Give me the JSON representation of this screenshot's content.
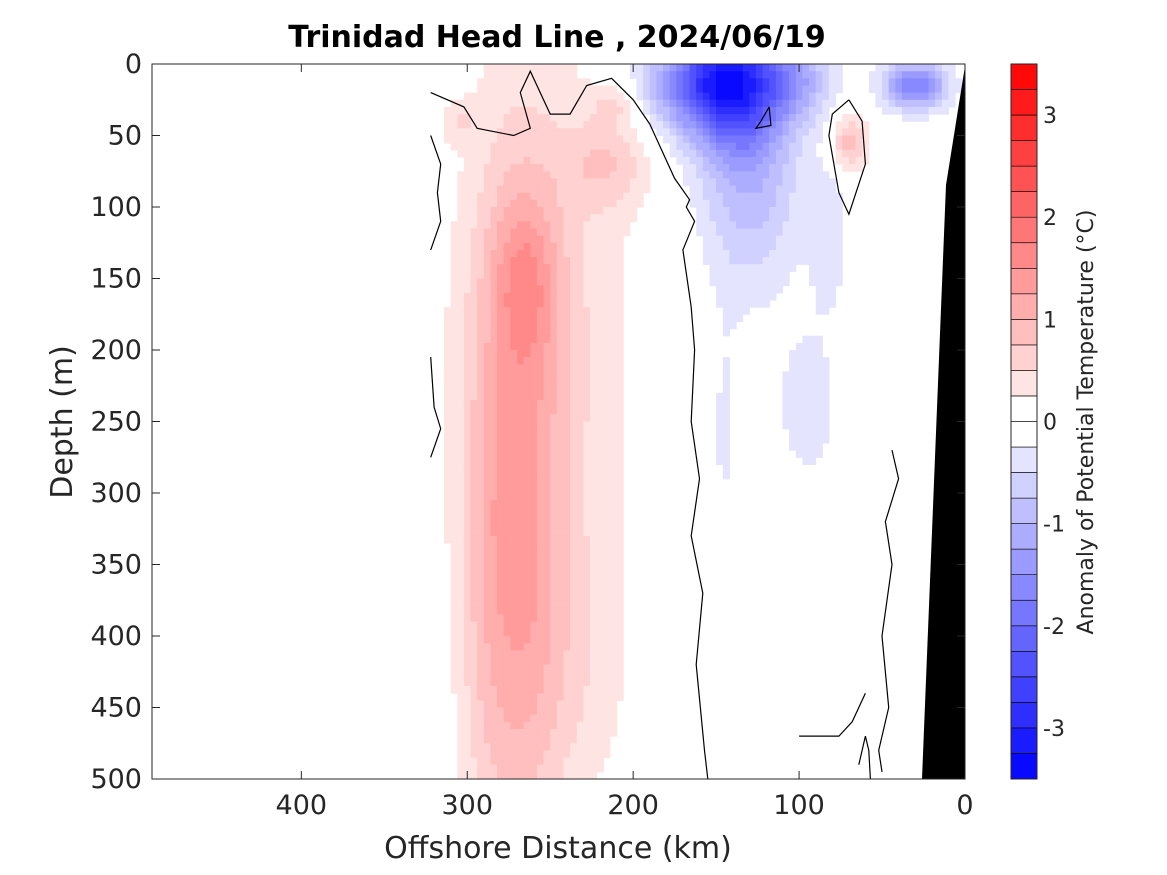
{
  "chart_data": {
    "type": "heatmap",
    "title": "Trinidad Head Line , 2024/06/19",
    "xlabel": "Offshore Distance (km)",
    "ylabel": "Depth (m)",
    "xlim": [
      490,
      0
    ],
    "ylim": [
      0,
      500
    ],
    "x_reversed": true,
    "y_reversed": true,
    "x_ticks": [
      400,
      300,
      200,
      100,
      0
    ],
    "y_ticks": [
      0,
      50,
      100,
      150,
      200,
      250,
      300,
      350,
      400,
      450,
      500
    ],
    "colorbar": {
      "label": "Anomaly of Potential Temperature (°C)",
      "min": -3.5,
      "max": 3.5,
      "step": 0.25,
      "ticks": [
        -3,
        -2,
        -1,
        0,
        1,
        2,
        3
      ],
      "tick_labels": [
        "-3",
        "-2",
        "-1",
        "0",
        "1",
        "2",
        "3"
      ],
      "cold_color": "#0000ff",
      "warm_color": "#ff0000",
      "neutral_color": "#ffffff",
      "colormap": "blue-white-red"
    },
    "features": [
      {
        "name": "warm core",
        "x": 265,
        "y": 150,
        "value": 1.6
      },
      {
        "name": "warm band",
        "x": 265,
        "y": 350,
        "value": 1.0
      },
      {
        "name": "warm patch",
        "x": 210,
        "y": 75,
        "value": 1.2
      },
      {
        "name": "warm patch",
        "x": 210,
        "y": 30,
        "value": 1.0
      },
      {
        "name": "warm eddy",
        "x": 70,
        "y": 55,
        "value": 0.9
      },
      {
        "name": "cold core",
        "x": 140,
        "y": 10,
        "value": -2.8
      },
      {
        "name": "cold surface",
        "x": 30,
        "y": 15,
        "value": -1.8
      },
      {
        "name": "cold patch",
        "x": 95,
        "y": 240,
        "value": -0.4
      }
    ],
    "zero_contour_color": "#000000",
    "bathymetry_color": "#000000",
    "grid": false
  }
}
